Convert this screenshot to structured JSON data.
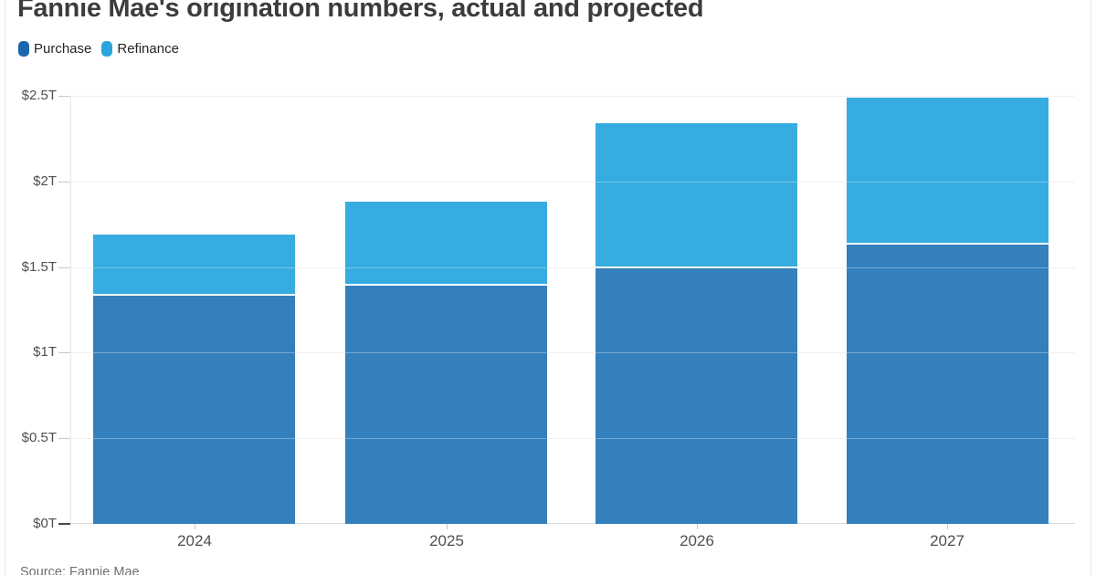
{
  "title": "Fannie Mae's origination numbers, actual and projected",
  "source_note": "Source: Fannie Mae",
  "legend": {
    "items": [
      {
        "label": "Purchase",
        "swatch_color": "#1A67AE"
      },
      {
        "label": "Refinance",
        "swatch_color": "#2BA6DC"
      }
    ]
  },
  "colors": {
    "purchase_bar": "#3380BD",
    "refinance_bar": "#36ACE0",
    "gridline": "#E9E9E9",
    "title_text": "#3C3C3C",
    "axis_text": "#4F4F4F"
  },
  "chart_data": {
    "type": "bar",
    "stacked": true,
    "title": "Fannie Mae's origination numbers, actual and projected",
    "categories": [
      "2024",
      "2025",
      "2026",
      "2027"
    ],
    "series": [
      {
        "name": "Purchase",
        "color": "#3380BD",
        "values": [
          1.33,
          1.39,
          1.49,
          1.63
        ]
      },
      {
        "name": "Refinance",
        "color": "#36ACE0",
        "values": [
          0.36,
          0.49,
          0.85,
          0.86
        ]
      }
    ],
    "totals": [
      1.69,
      1.88,
      2.34,
      2.49
    ],
    "unit": "trillions of dollars",
    "xlabel": "",
    "ylabel": "",
    "ylim": [
      0,
      2.5
    ],
    "y_ticks": [
      {
        "value": 0,
        "label": "$0T"
      },
      {
        "value": 0.5,
        "label": "$0.5T"
      },
      {
        "value": 1,
        "label": "$1T"
      },
      {
        "value": 1.5,
        "label": "$1.5T"
      },
      {
        "value": 2,
        "label": "$2T"
      },
      {
        "value": 2.5,
        "label": "$2.5T"
      }
    ],
    "grid": true,
    "legend_position": "top-left"
  }
}
